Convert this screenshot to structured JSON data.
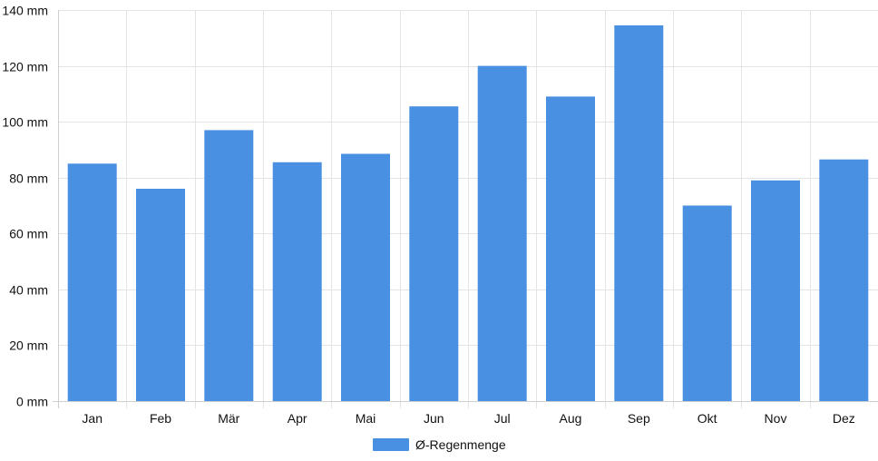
{
  "chart_data": {
    "type": "bar",
    "categories": [
      "Jan",
      "Feb",
      "Mär",
      "Apr",
      "Mai",
      "Jun",
      "Jul",
      "Aug",
      "Sep",
      "Okt",
      "Nov",
      "Dez"
    ],
    "series": [
      {
        "name": "Ø-Regenmenge",
        "values": [
          85,
          76,
          97,
          85.5,
          88.5,
          105.5,
          120,
          109,
          134.5,
          70,
          79,
          86.5
        ],
        "color": "#4a90e2"
      }
    ],
    "ylim": [
      0,
      140
    ],
    "yticks": [
      0,
      20,
      40,
      60,
      80,
      100,
      120,
      140
    ],
    "ytick_labels": [
      "0 mm",
      "20 mm",
      "40 mm",
      "60 mm",
      "80 mm",
      "100 mm",
      "120 mm",
      "140 mm"
    ],
    "grid": true,
    "legend_position": "bottom"
  }
}
